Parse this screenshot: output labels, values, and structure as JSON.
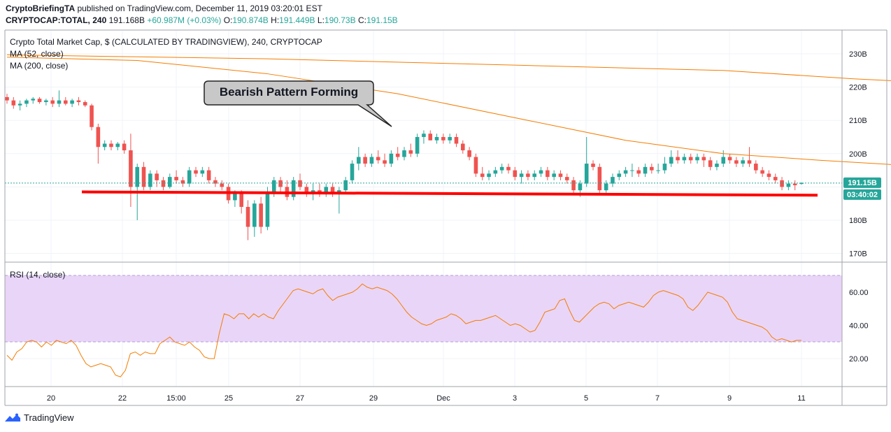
{
  "header": {
    "publisher": "CryptoBriefingTA",
    "published_text": "published on TradingView.com, December 11, 2019 03:20:01 EST",
    "symbol": "CRYPTOCAP:TOTAL, 240",
    "last": "191.168B",
    "change": "+60.987M (+0.03%)",
    "o_label": "O:",
    "o": "190.874B",
    "h_label": "H:",
    "h": "191.449B",
    "l_label": "L:",
    "l": "190.73B",
    "c_label": "C:",
    "c": "191.15B"
  },
  "legend": {
    "title": "Crypto Total Market Cap, $ (CALCULATED BY TRADINGVIEW), 240, CRYPTOCAP",
    "ma52": "MA (52, close)",
    "ma200": "MA (200, close)",
    "rsi": "RSI (14, close)"
  },
  "annotation": {
    "text": "Bearish Pattern Forming"
  },
  "price_label": "191.15B",
  "time_label": "03:40:02",
  "footer": {
    "brand": "TradingView"
  },
  "colors": {
    "up": "#26a69a",
    "down": "#ef5350",
    "ma": "#f57c00",
    "rsi_line": "#f57c00",
    "rsi_band": "#e9d5f7",
    "support": "#ff0000",
    "price_tag": "#26a69a",
    "grid": "#f0f3fa"
  },
  "chart_data": {
    "type": "candlestick",
    "price_axis": {
      "ticks": [
        "230B",
        "220B",
        "210B",
        "200B",
        "180B",
        "170B"
      ],
      "ylim": [
        167,
        233
      ],
      "unit": "B"
    },
    "x_ticks": [
      "20",
      "22",
      "15:00",
      "25",
      "27",
      "29",
      "Dec",
      "3",
      "5",
      "7",
      "9",
      "11"
    ],
    "candles": [
      [
        217,
        218,
        215,
        216
      ],
      [
        216,
        217,
        213.5,
        214.5
      ],
      [
        214.5,
        216,
        213,
        215
      ],
      [
        215,
        216.5,
        214,
        216
      ],
      [
        216,
        217,
        215,
        216.5
      ],
      [
        216.5,
        217,
        215,
        215.5
      ],
      [
        215.5,
        216.5,
        214.5,
        216
      ],
      [
        216,
        217,
        214,
        215
      ],
      [
        215,
        219,
        214,
        216
      ],
      [
        216,
        217,
        214.5,
        215
      ],
      [
        215,
        216.5,
        214,
        216
      ],
      [
        216,
        217,
        214.5,
        215.5
      ],
      [
        215.5,
        216,
        214,
        214.5
      ],
      [
        214.5,
        215,
        207,
        208
      ],
      [
        208,
        209,
        197,
        202
      ],
      [
        202,
        204,
        201,
        203
      ],
      [
        203,
        204,
        201,
        202
      ],
      [
        202,
        203.5,
        201,
        203
      ],
      [
        203,
        204,
        200,
        201
      ],
      [
        201,
        206,
        184,
        190
      ],
      [
        190,
        197,
        180,
        196
      ],
      [
        196,
        197.5,
        189,
        190
      ],
      [
        190,
        195,
        189,
        194
      ],
      [
        194,
        195,
        190,
        192
      ],
      [
        192,
        193,
        189,
        190
      ],
      [
        190,
        194,
        189.5,
        193
      ],
      [
        193,
        195,
        191,
        192
      ],
      [
        192,
        193,
        190,
        191
      ],
      [
        191,
        196,
        190,
        195
      ],
      [
        195,
        196,
        193,
        194
      ],
      [
        194,
        196,
        193,
        195
      ],
      [
        195,
        196,
        191,
        192
      ],
      [
        192,
        193,
        190,
        191
      ],
      [
        191,
        192,
        189,
        190
      ],
      [
        190,
        191,
        185,
        186
      ],
      [
        186,
        189,
        184,
        188
      ],
      [
        188,
        189,
        182,
        184
      ],
      [
        184,
        186,
        174,
        178
      ],
      [
        178,
        186,
        175,
        185
      ],
      [
        185,
        187,
        176,
        178
      ],
      [
        178,
        190,
        177,
        188
      ],
      [
        188,
        193,
        187,
        192
      ],
      [
        192,
        193,
        188,
        190
      ],
      [
        190,
        192,
        186,
        187
      ],
      [
        187,
        193,
        186,
        192
      ],
      [
        192,
        194,
        189,
        190
      ],
      [
        190,
        191,
        187,
        188
      ],
      [
        188,
        191,
        186,
        189
      ],
      [
        189,
        191,
        187,
        188
      ],
      [
        188,
        191,
        187,
        190
      ],
      [
        190,
        191,
        187,
        188
      ],
      [
        188,
        190,
        182,
        189
      ],
      [
        189,
        193,
        188,
        192
      ],
      [
        192,
        198,
        191,
        197
      ],
      [
        197,
        202,
        195,
        199
      ],
      [
        199,
        200,
        196,
        197
      ],
      [
        197,
        200,
        196,
        199
      ],
      [
        199,
        201,
        197,
        198
      ],
      [
        198,
        200,
        196,
        197
      ],
      [
        197,
        201,
        196,
        200
      ],
      [
        200,
        202,
        198,
        199
      ],
      [
        199,
        202,
        198,
        201
      ],
      [
        201,
        203,
        199,
        200
      ],
      [
        200,
        206,
        199,
        205
      ],
      [
        205,
        207,
        203,
        206
      ],
      [
        206,
        207,
        204,
        204
      ],
      [
        204,
        206,
        203,
        205
      ],
      [
        205,
        206,
        203,
        204
      ],
      [
        204,
        206,
        203,
        205
      ],
      [
        205,
        206,
        202,
        203
      ],
      [
        203,
        204,
        200,
        201
      ],
      [
        201,
        202,
        198,
        199
      ],
      [
        199,
        200,
        193,
        194
      ],
      [
        194,
        196,
        192,
        193
      ],
      [
        193,
        195,
        192,
        194
      ],
      [
        194,
        196,
        193,
        195
      ],
      [
        195,
        197,
        194,
        196
      ],
      [
        196,
        197,
        194,
        195
      ],
      [
        195,
        196,
        192,
        193
      ],
      [
        193,
        195,
        191,
        194
      ],
      [
        194,
        195,
        192,
        193
      ],
      [
        193,
        195,
        192,
        194
      ],
      [
        194,
        196,
        193,
        195
      ],
      [
        195,
        196,
        192,
        193
      ],
      [
        193,
        195,
        192,
        194
      ],
      [
        194,
        195,
        192,
        193
      ],
      [
        193,
        194,
        191,
        192
      ],
      [
        192,
        193,
        188,
        189
      ],
      [
        189,
        192,
        187,
        191
      ],
      [
        191,
        205,
        190,
        197
      ],
      [
        197,
        198,
        195,
        196
      ],
      [
        196,
        197,
        188,
        189
      ],
      [
        189,
        192,
        188,
        191
      ],
      [
        191,
        194,
        190,
        193
      ],
      [
        193,
        195,
        192,
        194
      ],
      [
        194,
        196,
        193,
        195
      ],
      [
        195,
        197,
        193,
        195
      ],
      [
        195,
        196,
        193,
        194
      ],
      [
        194,
        197,
        193,
        196
      ],
      [
        196,
        197,
        194,
        195
      ],
      [
        195,
        197,
        194,
        195
      ],
      [
        195,
        199,
        194,
        197
      ],
      [
        197,
        201,
        196,
        199
      ],
      [
        199,
        201,
        197,
        198
      ],
      [
        198,
        200,
        197,
        199
      ],
      [
        199,
        200,
        197,
        198
      ],
      [
        198,
        200,
        197,
        199
      ],
      [
        199,
        200,
        196,
        198
      ],
      [
        198,
        199,
        195,
        196
      ],
      [
        196,
        198,
        195,
        197
      ],
      [
        197,
        201,
        196,
        199
      ],
      [
        199,
        200,
        197,
        198
      ],
      [
        198,
        199,
        196,
        197
      ],
      [
        197,
        199,
        196,
        198
      ],
      [
        198,
        202,
        196,
        197
      ],
      [
        197,
        198,
        194,
        195
      ],
      [
        195,
        196,
        193,
        194
      ],
      [
        194,
        195,
        192,
        193
      ],
      [
        193,
        194,
        191,
        192
      ],
      [
        192,
        193,
        189,
        190
      ],
      [
        190,
        192,
        189,
        191
      ],
      [
        191,
        192,
        189,
        190.5
      ],
      [
        190.9,
        191.4,
        190.7,
        191.2
      ]
    ],
    "ma52": [
      [
        0,
        229
      ],
      [
        20,
        228
      ],
      [
        40,
        224
      ],
      [
        60,
        218
      ],
      [
        80,
        210
      ],
      [
        95,
        204
      ],
      [
        110,
        200
      ],
      [
        125,
        198
      ],
      [
        142,
        196
      ],
      [
        160,
        196
      ],
      [
        175,
        195.5
      ],
      [
        195,
        196
      ],
      [
        220,
        195.5
      ],
      [
        240,
        194.5
      ]
    ],
    "ma200": [
      [
        0,
        229.7
      ],
      [
        40,
        228.5
      ],
      [
        80,
        226.5
      ],
      [
        110,
        225
      ],
      [
        130,
        222.5
      ],
      [
        150,
        220.5
      ],
      [
        170,
        218
      ],
      [
        190,
        216
      ],
      [
        210,
        214
      ],
      [
        230,
        210.5
      ],
      [
        240,
        208
      ]
    ],
    "support_line": [
      [
        23,
        188.5
      ],
      [
        246,
        187.5
      ]
    ],
    "current_price": 191.15,
    "rsi": {
      "ticks": [
        "60.00",
        "40.00",
        "20.00"
      ],
      "ylim": [
        0,
        75
      ],
      "band": [
        30,
        70
      ],
      "values": [
        22,
        19,
        24,
        26,
        30,
        31,
        30,
        27,
        30,
        28,
        31,
        30,
        29,
        31,
        28,
        22,
        17,
        15,
        16,
        17,
        16,
        15,
        10,
        9,
        13,
        23,
        24,
        22,
        24,
        23,
        23,
        29,
        31,
        33,
        30,
        29,
        28,
        30,
        27,
        25,
        21,
        20,
        20,
        35,
        47,
        46,
        44,
        47,
        47,
        44,
        47,
        45,
        47,
        45,
        44,
        49,
        53,
        57,
        61,
        62,
        61,
        60,
        59,
        61,
        62,
        58,
        55,
        57,
        58,
        59,
        60,
        62,
        65,
        63,
        62,
        63,
        62,
        61,
        59,
        56,
        52,
        48,
        45,
        43,
        41,
        40,
        41,
        43,
        44,
        45,
        47,
        46,
        44,
        41,
        42,
        43,
        43,
        44,
        45,
        46,
        44,
        42,
        40,
        41,
        40,
        38,
        36,
        37,
        42,
        48,
        49,
        50,
        55,
        56,
        49,
        43,
        42,
        45,
        48,
        51,
        53,
        54,
        53,
        50,
        52,
        53,
        54,
        53,
        52,
        51,
        54,
        58,
        60,
        61,
        60,
        59,
        58,
        56,
        51,
        49,
        52,
        56,
        60,
        59,
        58,
        57,
        54,
        48,
        44,
        43,
        42,
        41,
        40,
        39,
        37,
        33,
        31,
        32,
        31,
        30,
        31,
        31
      ]
    }
  }
}
